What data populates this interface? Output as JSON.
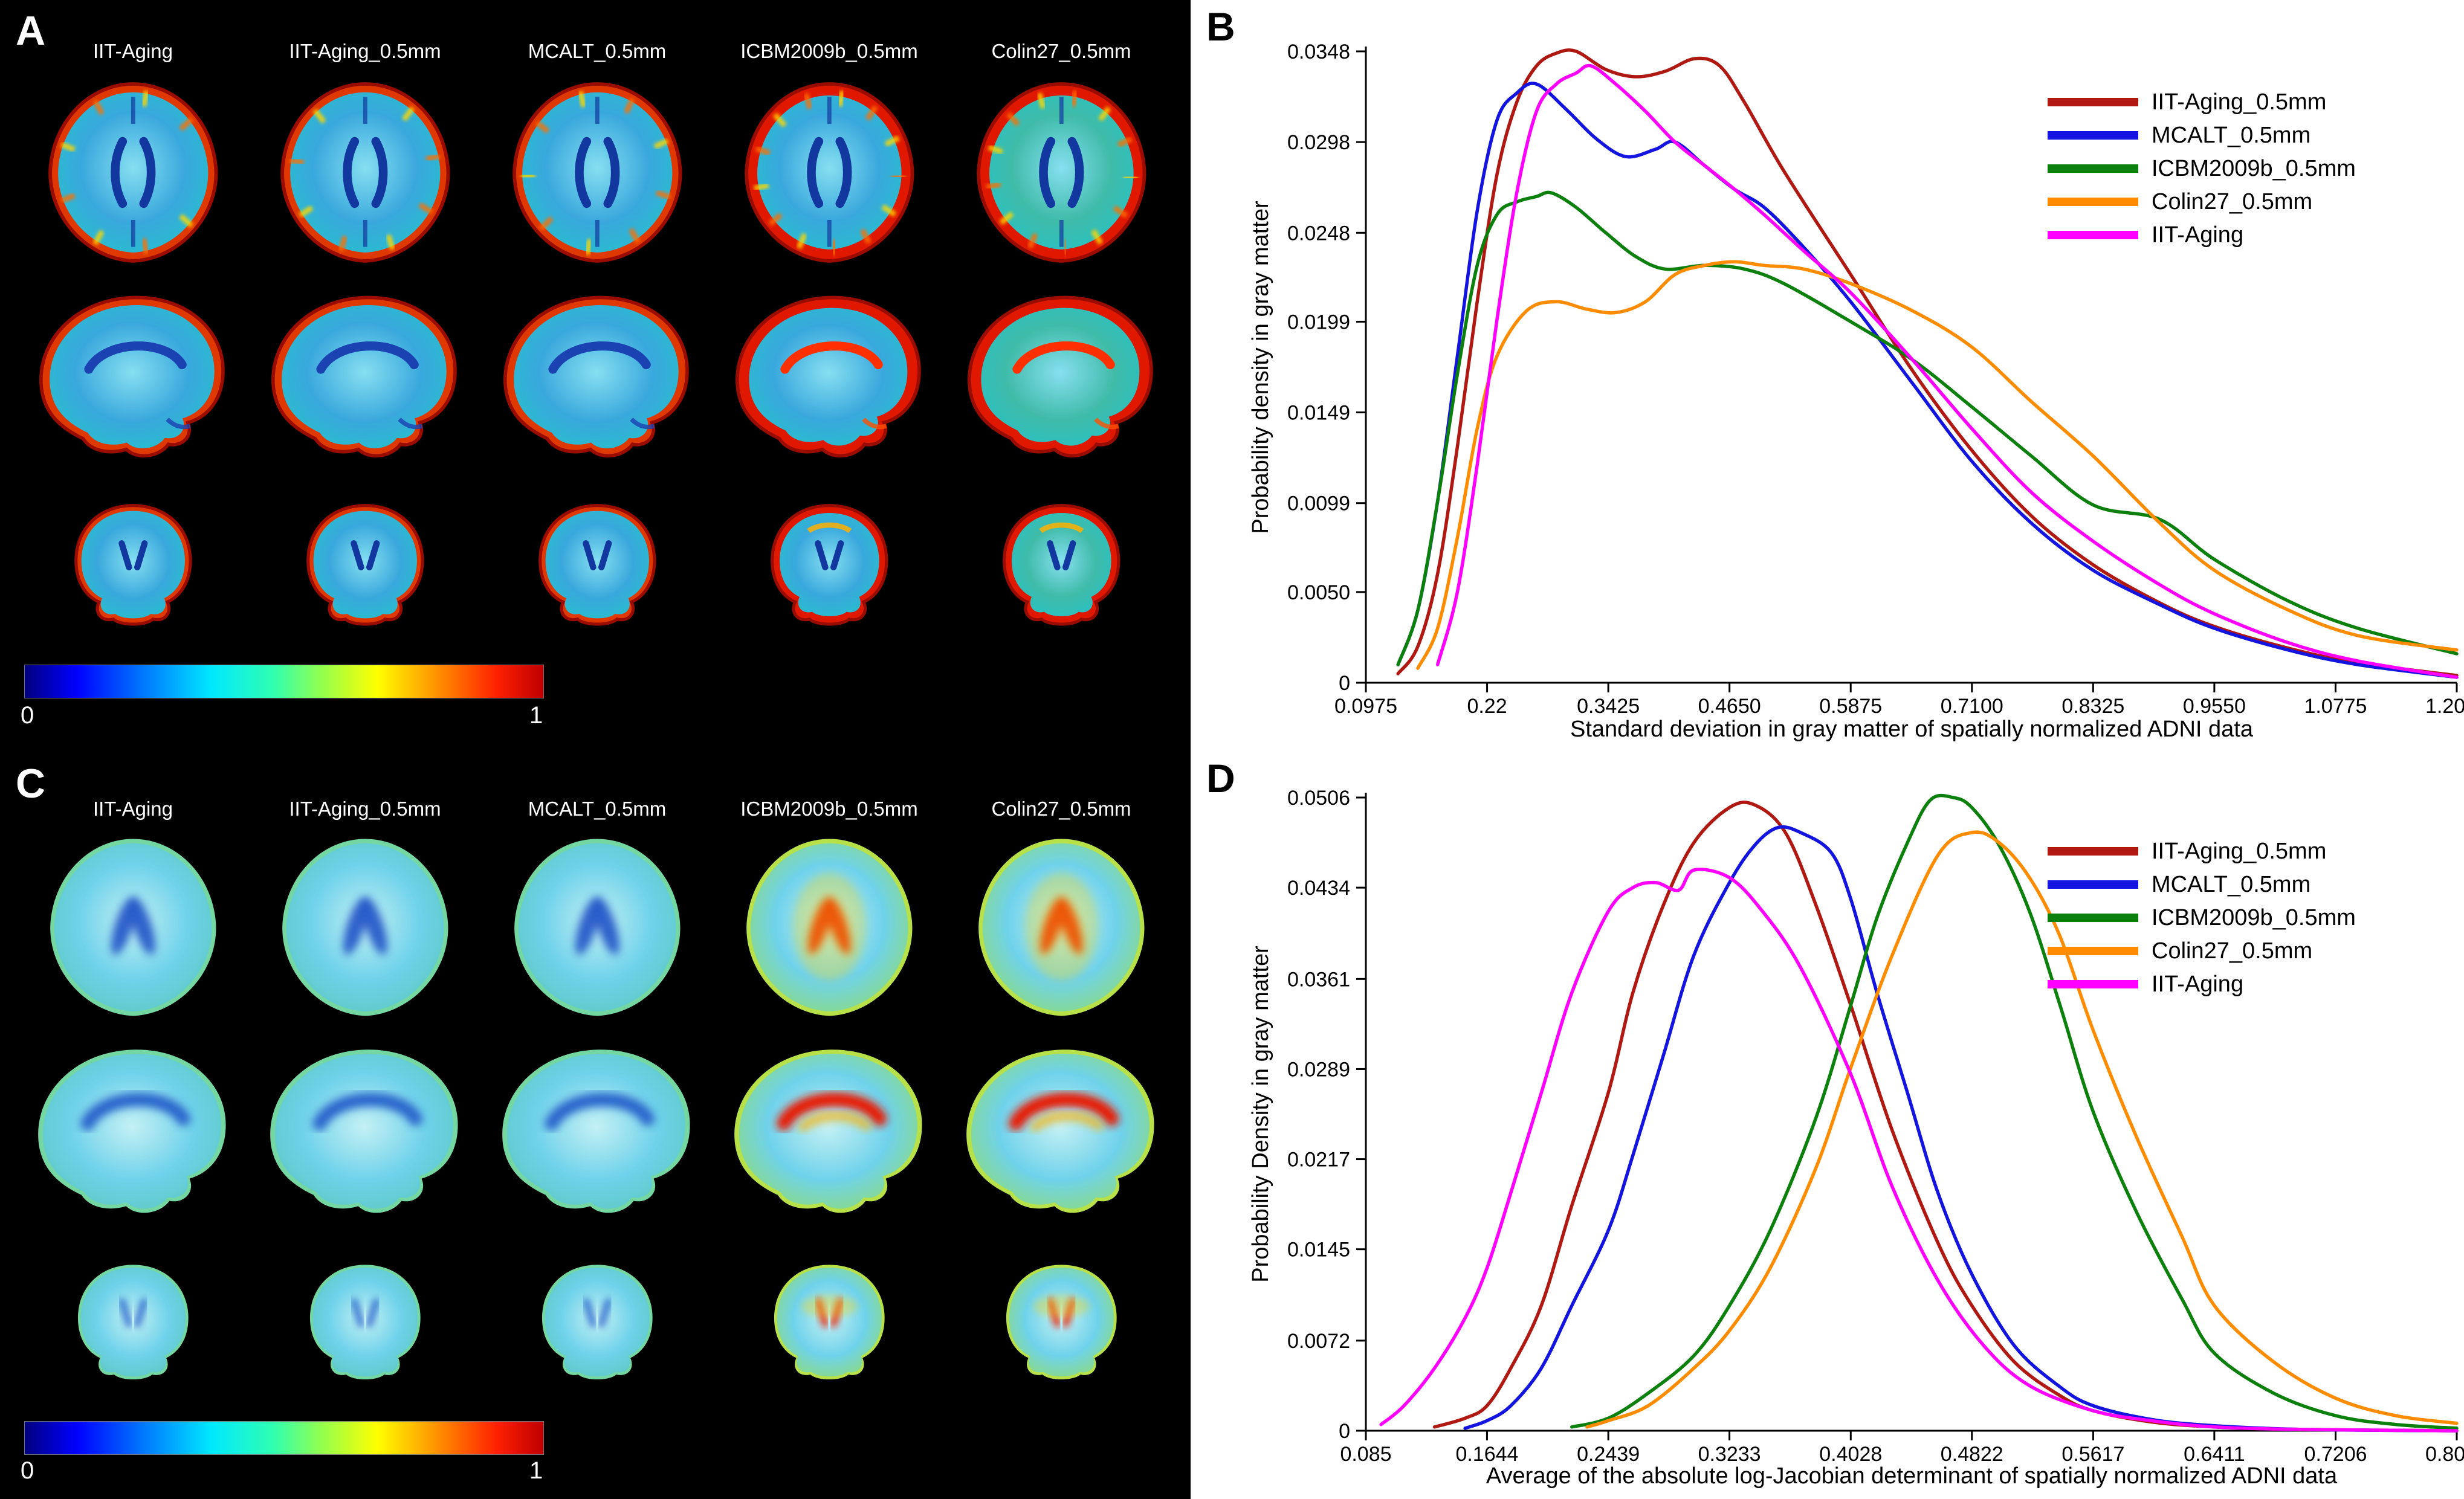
{
  "figure": {
    "background": "#ffffff",
    "left_background": "#000000"
  },
  "panels": {
    "A": {
      "label": "A",
      "columns": [
        "IIT-Aging",
        "IIT-Aging_0.5mm",
        "MCALT_0.5mm",
        "ICBM2009b_0.5mm",
        "Colin27_0.5mm"
      ],
      "rows": [
        "axial",
        "sagittal",
        "coronal"
      ],
      "colorbar": {
        "min": "0",
        "max": "1"
      }
    },
    "C": {
      "label": "C",
      "columns": [
        "IIT-Aging",
        "IIT-Aging_0.5mm",
        "MCALT_0.5mm",
        "ICBM2009b_0.5mm",
        "Colin27_0.5mm"
      ],
      "rows": [
        "axial",
        "sagittal",
        "coronal"
      ],
      "colorbar": {
        "min": "0",
        "max": "1"
      }
    },
    "B": {
      "label": "B"
    },
    "D": {
      "label": "D"
    }
  },
  "chart_data": [
    {
      "panel": "B",
      "type": "line",
      "title": "",
      "xlabel": "Standard deviation in gray matter of spatially normalized ADNI data",
      "ylabel": "Probability density in gray matter",
      "xlim": [
        0.0975,
        1.2
      ],
      "ylim": [
        0,
        0.0348
      ],
      "grid": false,
      "legend_position": "upper right",
      "xticks": [
        0.0975,
        0.22,
        0.3425,
        0.465,
        0.5875,
        0.71,
        0.8325,
        0.955,
        1.0775,
        1.2
      ],
      "xtick_labels": [
        "0.0975",
        "0.22",
        "0.3425",
        "0.4650",
        "0.5875",
        "0.7100",
        "0.8325",
        "0.9550",
        "1.0775",
        "1.2000"
      ],
      "yticks": [
        0,
        0.005,
        0.0099,
        0.0149,
        0.0199,
        0.0248,
        0.0298,
        0.0348
      ],
      "ytick_labels": [
        "0",
        "0.0050",
        "0.0099",
        "0.0149",
        "0.0199",
        "0.0248",
        "0.0298",
        "0.0348"
      ],
      "series": [
        {
          "name": "IIT-Aging_0.5mm",
          "color": "#b01812",
          "x": [
            0.13,
            0.15,
            0.17,
            0.19,
            0.21,
            0.23,
            0.25,
            0.27,
            0.29,
            0.31,
            0.34,
            0.37,
            0.4,
            0.43,
            0.455,
            0.48,
            0.52,
            0.5875,
            0.65,
            0.71,
            0.77,
            0.8325,
            0.9,
            0.955,
            1.03,
            1.1,
            1.2
          ],
          "y": [
            0.0005,
            0.002,
            0.006,
            0.013,
            0.021,
            0.028,
            0.032,
            0.034,
            0.0347,
            0.0348,
            0.0338,
            0.0334,
            0.0337,
            0.0344,
            0.034,
            0.032,
            0.0282,
            0.0225,
            0.0172,
            0.0128,
            0.0092,
            0.0065,
            0.0044,
            0.0031,
            0.0019,
            0.0011,
            0.0004
          ]
        },
        {
          "name": "MCALT_0.5mm",
          "color": "#1414e0",
          "x": [
            0.13,
            0.15,
            0.17,
            0.19,
            0.21,
            0.23,
            0.25,
            0.27,
            0.3,
            0.33,
            0.36,
            0.39,
            0.41,
            0.44,
            0.47,
            0.5,
            0.54,
            0.5875,
            0.65,
            0.71,
            0.77,
            0.8325,
            0.9,
            0.955,
            1.03,
            1.1,
            1.2
          ],
          "y": [
            0.001,
            0.004,
            0.01,
            0.018,
            0.026,
            0.031,
            0.0325,
            0.033,
            0.0316,
            0.03,
            0.029,
            0.0294,
            0.0298,
            0.0285,
            0.0272,
            0.0262,
            0.024,
            0.021,
            0.0165,
            0.0122,
            0.0088,
            0.0062,
            0.0043,
            0.003,
            0.0018,
            0.001,
            0.0003
          ]
        },
        {
          "name": "ICBM2009b_0.5mm",
          "color": "#0c800c",
          "x": [
            0.13,
            0.15,
            0.17,
            0.19,
            0.21,
            0.23,
            0.25,
            0.27,
            0.285,
            0.31,
            0.34,
            0.37,
            0.4,
            0.44,
            0.48,
            0.52,
            0.5875,
            0.65,
            0.71,
            0.77,
            0.8325,
            0.9,
            0.955,
            1.03,
            1.1,
            1.2
          ],
          "y": [
            0.001,
            0.004,
            0.01,
            0.017,
            0.023,
            0.0258,
            0.0265,
            0.0268,
            0.027,
            0.0262,
            0.0248,
            0.0235,
            0.0228,
            0.023,
            0.0228,
            0.022,
            0.0199,
            0.0178,
            0.0152,
            0.0125,
            0.0098,
            0.009,
            0.0068,
            0.0045,
            0.003,
            0.0016
          ]
        },
        {
          "name": "Colin27_0.5mm",
          "color": "#ff8c00",
          "x": [
            0.15,
            0.17,
            0.19,
            0.21,
            0.23,
            0.26,
            0.29,
            0.32,
            0.35,
            0.38,
            0.41,
            0.44,
            0.47,
            0.5,
            0.54,
            0.5875,
            0.65,
            0.71,
            0.77,
            0.8325,
            0.9,
            0.955,
            1.03,
            1.1,
            1.2
          ],
          "y": [
            0.0008,
            0.003,
            0.008,
            0.014,
            0.018,
            0.0205,
            0.021,
            0.0206,
            0.0204,
            0.021,
            0.0225,
            0.023,
            0.0232,
            0.023,
            0.0228,
            0.022,
            0.0205,
            0.0185,
            0.0155,
            0.0125,
            0.0088,
            0.0062,
            0.004,
            0.0026,
            0.0018
          ]
        },
        {
          "name": "IIT-Aging",
          "color": "#ff00ff",
          "x": [
            0.17,
            0.19,
            0.21,
            0.23,
            0.25,
            0.27,
            0.29,
            0.31,
            0.325,
            0.35,
            0.38,
            0.41,
            0.44,
            0.47,
            0.5,
            0.54,
            0.5875,
            0.65,
            0.71,
            0.77,
            0.8325,
            0.9,
            0.955,
            1.03,
            1.1,
            1.2
          ],
          "y": [
            0.001,
            0.005,
            0.012,
            0.02,
            0.027,
            0.0315,
            0.033,
            0.0336,
            0.034,
            0.033,
            0.0315,
            0.0298,
            0.0285,
            0.0272,
            0.0258,
            0.0238,
            0.0215,
            0.0178,
            0.014,
            0.0105,
            0.0078,
            0.0054,
            0.0038,
            0.0022,
            0.0012,
            0.0003
          ]
        }
      ]
    },
    {
      "panel": "D",
      "type": "line",
      "title": "",
      "xlabel": "Average of the absolute log-Jacobian determinant of spatially normalized ADNI data",
      "ylabel": "Probability Density in gray matter",
      "xlim": [
        0.085,
        0.8
      ],
      "ylim": [
        0,
        0.0506
      ],
      "grid": false,
      "legend_position": "upper right",
      "xticks": [
        0.085,
        0.1644,
        0.2439,
        0.3233,
        0.4028,
        0.4822,
        0.5617,
        0.6411,
        0.7206,
        0.8
      ],
      "xtick_labels": [
        "0.085",
        "0.1644",
        "0.2439",
        "0.3233",
        "0.4028",
        "0.4822",
        "0.5617",
        "0.6411",
        "0.7206",
        "0.8000"
      ],
      "yticks": [
        0,
        0.0072,
        0.0145,
        0.0217,
        0.0289,
        0.0361,
        0.0434,
        0.0506
      ],
      "ytick_labels": [
        "0",
        "0.0072",
        "0.0145",
        "0.0217",
        "0.0289",
        "0.0361",
        "0.0434",
        "0.0506"
      ],
      "series": [
        {
          "name": "IIT-Aging_0.5mm",
          "color": "#b01812",
          "x": [
            0.13,
            0.15,
            0.1644,
            0.18,
            0.2,
            0.22,
            0.2439,
            0.26,
            0.28,
            0.3,
            0.3233,
            0.34,
            0.36,
            0.38,
            0.4028,
            0.43,
            0.46,
            0.4822,
            0.51,
            0.54,
            0.5617,
            0.6,
            0.6411,
            0.7,
            0.8
          ],
          "y": [
            0.0003,
            0.001,
            0.002,
            0.005,
            0.01,
            0.018,
            0.027,
            0.035,
            0.042,
            0.047,
            0.0498,
            0.05,
            0.0478,
            0.042,
            0.034,
            0.024,
            0.015,
            0.01,
            0.0055,
            0.0028,
            0.0016,
            0.0007,
            0.0003,
            0.0001,
            0.0
          ]
        },
        {
          "name": "MCALT_0.5mm",
          "color": "#1414e0",
          "x": [
            0.15,
            0.1644,
            0.18,
            0.2,
            0.22,
            0.2439,
            0.26,
            0.28,
            0.3,
            0.3233,
            0.34,
            0.355,
            0.37,
            0.39,
            0.4028,
            0.42,
            0.44,
            0.46,
            0.4822,
            0.51,
            0.54,
            0.5617,
            0.6,
            0.6411,
            0.7,
            0.8
          ],
          "y": [
            0.0002,
            0.0008,
            0.002,
            0.005,
            0.01,
            0.016,
            0.022,
            0.03,
            0.038,
            0.0438,
            0.0468,
            0.0482,
            0.0478,
            0.0462,
            0.0425,
            0.035,
            0.027,
            0.019,
            0.0125,
            0.0068,
            0.0035,
            0.002,
            0.0009,
            0.0004,
            0.0001,
            0.0
          ]
        },
        {
          "name": "ICBM2009b_0.5mm",
          "color": "#0c800c",
          "x": [
            0.22,
            0.2439,
            0.27,
            0.3,
            0.3233,
            0.35,
            0.38,
            0.4028,
            0.42,
            0.44,
            0.455,
            0.47,
            0.4822,
            0.5,
            0.52,
            0.54,
            0.5617,
            0.59,
            0.62,
            0.6411,
            0.68,
            0.7206,
            0.76,
            0.8
          ],
          "y": [
            0.0003,
            0.001,
            0.003,
            0.006,
            0.01,
            0.016,
            0.025,
            0.034,
            0.041,
            0.047,
            0.0504,
            0.0506,
            0.0498,
            0.0468,
            0.0415,
            0.034,
            0.0255,
            0.0175,
            0.0105,
            0.0062,
            0.003,
            0.0012,
            0.0005,
            0.0002
          ]
        },
        {
          "name": "Colin27_0.5mm",
          "color": "#ff8c00",
          "x": [
            0.23,
            0.2439,
            0.27,
            0.3,
            0.3233,
            0.35,
            0.38,
            0.4028,
            0.43,
            0.46,
            0.4822,
            0.5,
            0.52,
            0.54,
            0.5617,
            0.59,
            0.62,
            0.6411,
            0.68,
            0.7206,
            0.76,
            0.8
          ],
          "y": [
            0.0003,
            0.0008,
            0.002,
            0.005,
            0.008,
            0.013,
            0.021,
            0.029,
            0.038,
            0.046,
            0.0478,
            0.047,
            0.0442,
            0.0395,
            0.032,
            0.0235,
            0.0155,
            0.01,
            0.0055,
            0.0026,
            0.0012,
            0.0006
          ]
        },
        {
          "name": "IIT-Aging",
          "color": "#ff00ff",
          "x": [
            0.095,
            0.11,
            0.13,
            0.15,
            0.1644,
            0.18,
            0.2,
            0.22,
            0.2439,
            0.26,
            0.275,
            0.29,
            0.3,
            0.3233,
            0.345,
            0.37,
            0.4028,
            0.43,
            0.46,
            0.49,
            0.52,
            0.5617,
            0.6,
            0.6411,
            0.7,
            0.8
          ],
          "y": [
            0.0005,
            0.002,
            0.005,
            0.009,
            0.013,
            0.019,
            0.027,
            0.035,
            0.0415,
            0.0434,
            0.0438,
            0.0432,
            0.0448,
            0.0442,
            0.0415,
            0.037,
            0.0285,
            0.0195,
            0.012,
            0.0068,
            0.0036,
            0.0016,
            0.0008,
            0.0003,
            0.0001,
            0.0
          ]
        }
      ]
    }
  ]
}
